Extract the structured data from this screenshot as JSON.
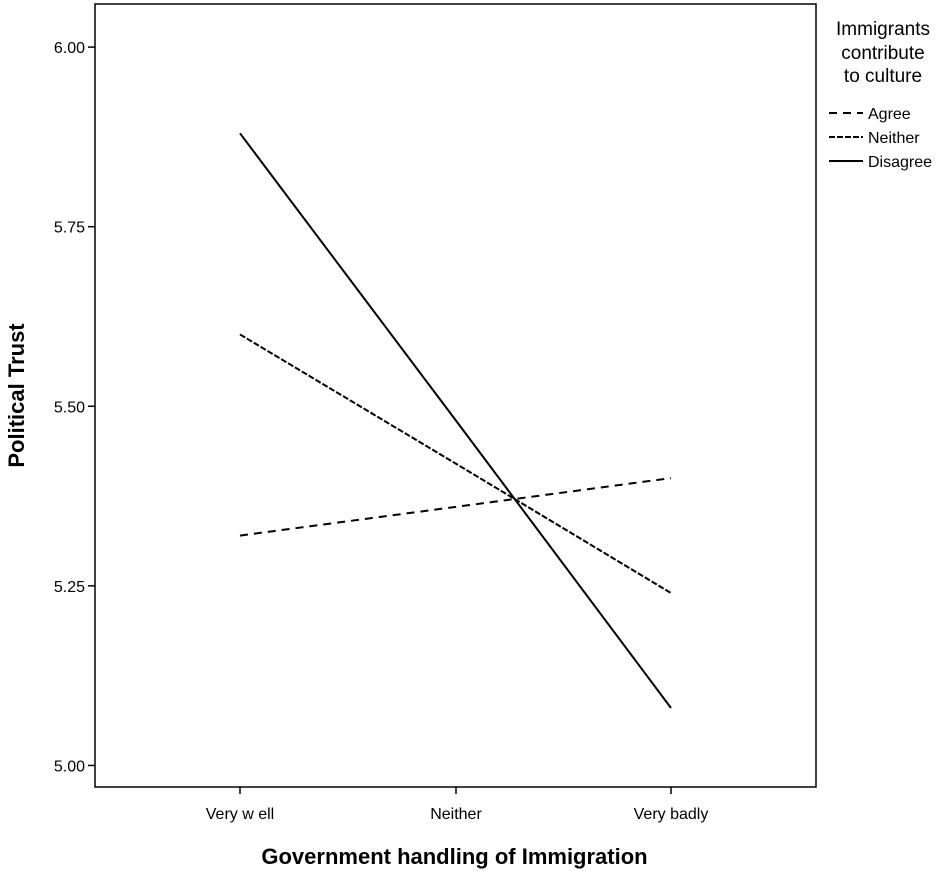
{
  "chart_data": {
    "type": "line",
    "xlabel": "Government handling of Immigration",
    "ylabel": "Political Trust",
    "categories": [
      "Very w ell",
      "Neither",
      "Very badly"
    ],
    "ylim": [
      4.97,
      6.06
    ],
    "yticks": [
      "5.00",
      "5.25",
      "5.50",
      "5.75",
      "6.00"
    ],
    "ytick_values": [
      5.0,
      5.25,
      5.5,
      5.75,
      6.0
    ],
    "grid": false,
    "legend": {
      "title_lines": [
        "Immigrants",
        "contribute",
        "to culture"
      ],
      "position": "right"
    },
    "series": [
      {
        "name": "Agree",
        "style": "dashed",
        "values": [
          5.32,
          5.36,
          5.4
        ]
      },
      {
        "name": "Neither",
        "style": "fine-dashed",
        "values": [
          5.6,
          5.42,
          5.24
        ]
      },
      {
        "name": "Disagree",
        "style": "solid",
        "values": [
          5.88,
          5.48,
          5.08
        ]
      }
    ],
    "colors": {
      "line": "#000000",
      "background": "#ffffff"
    }
  }
}
